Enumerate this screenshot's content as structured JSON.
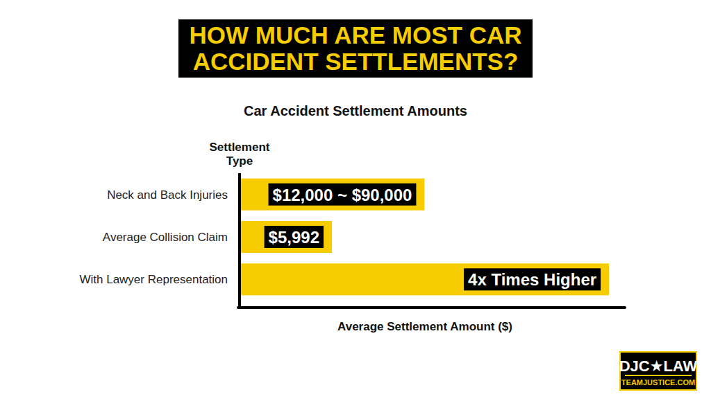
{
  "heading": "HOW MUCH ARE MOST CAR ACCIDENT SETTLEMENTS?",
  "chart_data": {
    "type": "bar",
    "orientation": "horizontal",
    "title": "Car Accident Settlement Amounts",
    "y_label": "Settlement Type",
    "x_label": "Average Settlement Amount ($)",
    "categories": [
      "Neck and Back Injuries",
      "Average Collision Claim",
      "With Lawyer Representation"
    ],
    "values": [
      12000,
      5992,
      23968
    ],
    "value_labels": [
      "$12,000 ~ $90,000",
      "$5,992",
      "4x Times Higher"
    ],
    "data_labels": true,
    "color": "#f7cc00",
    "xlim": [
      0,
      25000
    ],
    "xticks": [],
    "tick_labels": "y",
    "grid": false
  },
  "logo": {
    "brand": "DJC★LAW",
    "site": "TEAMJUSTICE.COM"
  }
}
